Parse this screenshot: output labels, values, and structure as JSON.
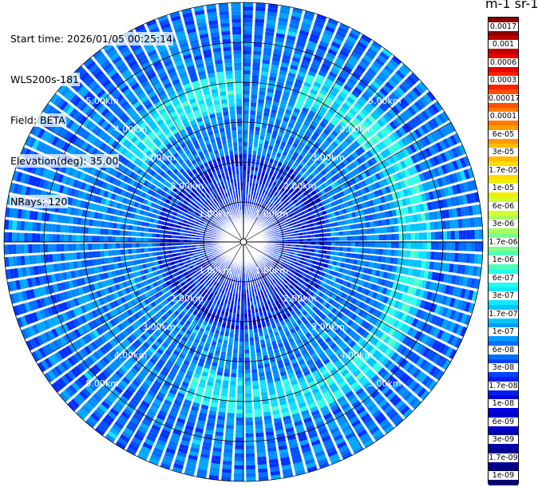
{
  "info": {
    "start_time": "Start time: 2026/01/05 00:25:14",
    "instrument": "WLS200s-181",
    "field": "Field: BETA",
    "elevation": "Elevation(deg): 35.00",
    "nrays": "NRays: 120"
  },
  "colorbar": {
    "title": "m-1 sr-1",
    "labels": [
      "0.0017",
      "0.001",
      "0.0006",
      "0.0003",
      "0.00017",
      "0.0001",
      "6e-05",
      "3e-05",
      "1.7e-05",
      "1e-05",
      "6e-06",
      "3e-06",
      "1.7e-06",
      "1e-06",
      "6e-07",
      "3e-07",
      "1.7e-07",
      "1e-07",
      "6e-08",
      "3e-08",
      "1.7e-08",
      "1e-08",
      "6e-09",
      "3e-09",
      "1.7e-09",
      "1e-09"
    ],
    "colors": [
      "#8b0000",
      "#c00000",
      "#e60000",
      "#ff2000",
      "#ff5000",
      "#ff7a00",
      "#ff9a00",
      "#ffbb00",
      "#ffdd00",
      "#f0f000",
      "#d4ff30",
      "#a8ff60",
      "#7cff8c",
      "#50ffb8",
      "#20fff0",
      "#10e8ff",
      "#00c8ff",
      "#009cff",
      "#0070ff",
      "#0044ff",
      "#0020f0",
      "#0000e0",
      "#0000c8",
      "#0000a8",
      "#000090",
      "#000070"
    ]
  },
  "range_rings": {
    "labels": [
      "1.00km",
      "2.00km",
      "3.00km",
      "4.00km",
      "5.00km"
    ]
  },
  "chart_data": {
    "type": "heatmap",
    "title": "",
    "projection": "polar PPI",
    "n_rays": 120,
    "ring_ranges_km": [
      1,
      2,
      3,
      4,
      5
    ],
    "max_range_km": 6,
    "colorbar_units": "m-1 sr-1",
    "feature": "enhanced backscatter arc near 3.5-4.5 km range from NW through E to S"
  }
}
